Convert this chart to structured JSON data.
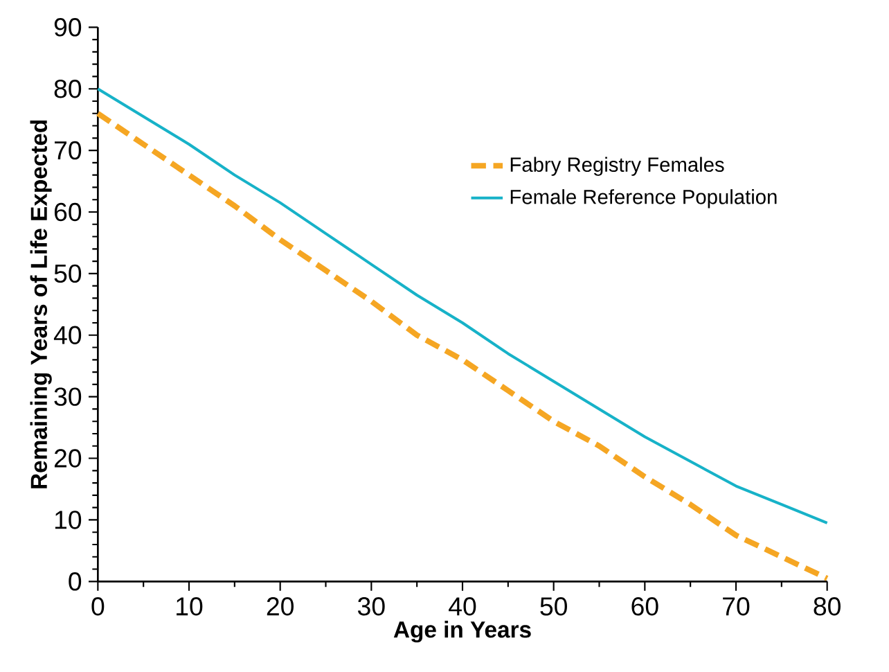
{
  "chart_data": {
    "type": "line",
    "xlabel": "Age in Years",
    "ylabel": "Remaining Years of Life Expected",
    "x": [
      0,
      5,
      10,
      15,
      20,
      25,
      30,
      35,
      40,
      45,
      50,
      55,
      60,
      65,
      70,
      75,
      80
    ],
    "series": [
      {
        "name": "Fabry Registry Females",
        "color": "#f5a623",
        "line_style": "dashed",
        "values": [
          76,
          71,
          66,
          61,
          55.5,
          50.5,
          45.5,
          40,
          36,
          31,
          26,
          22,
          17,
          12.5,
          7.5,
          4,
          0.5
        ]
      },
      {
        "name": "Female Reference Population",
        "color": "#17b2c8",
        "line_style": "solid",
        "values": [
          80,
          75.5,
          71,
          66,
          61.5,
          56.5,
          51.5,
          46.5,
          42,
          37,
          32.5,
          28,
          23.5,
          19.5,
          15.5,
          12.5,
          9.5
        ]
      }
    ],
    "xlim": [
      0,
      80
    ],
    "ylim": [
      0,
      90
    ],
    "xticks": [
      0,
      10,
      20,
      30,
      40,
      50,
      60,
      70,
      80
    ],
    "yticks": [
      0,
      10,
      20,
      30,
      40,
      50,
      60,
      70,
      80,
      90
    ],
    "grid": false,
    "legend": "right",
    "marker": "none"
  }
}
